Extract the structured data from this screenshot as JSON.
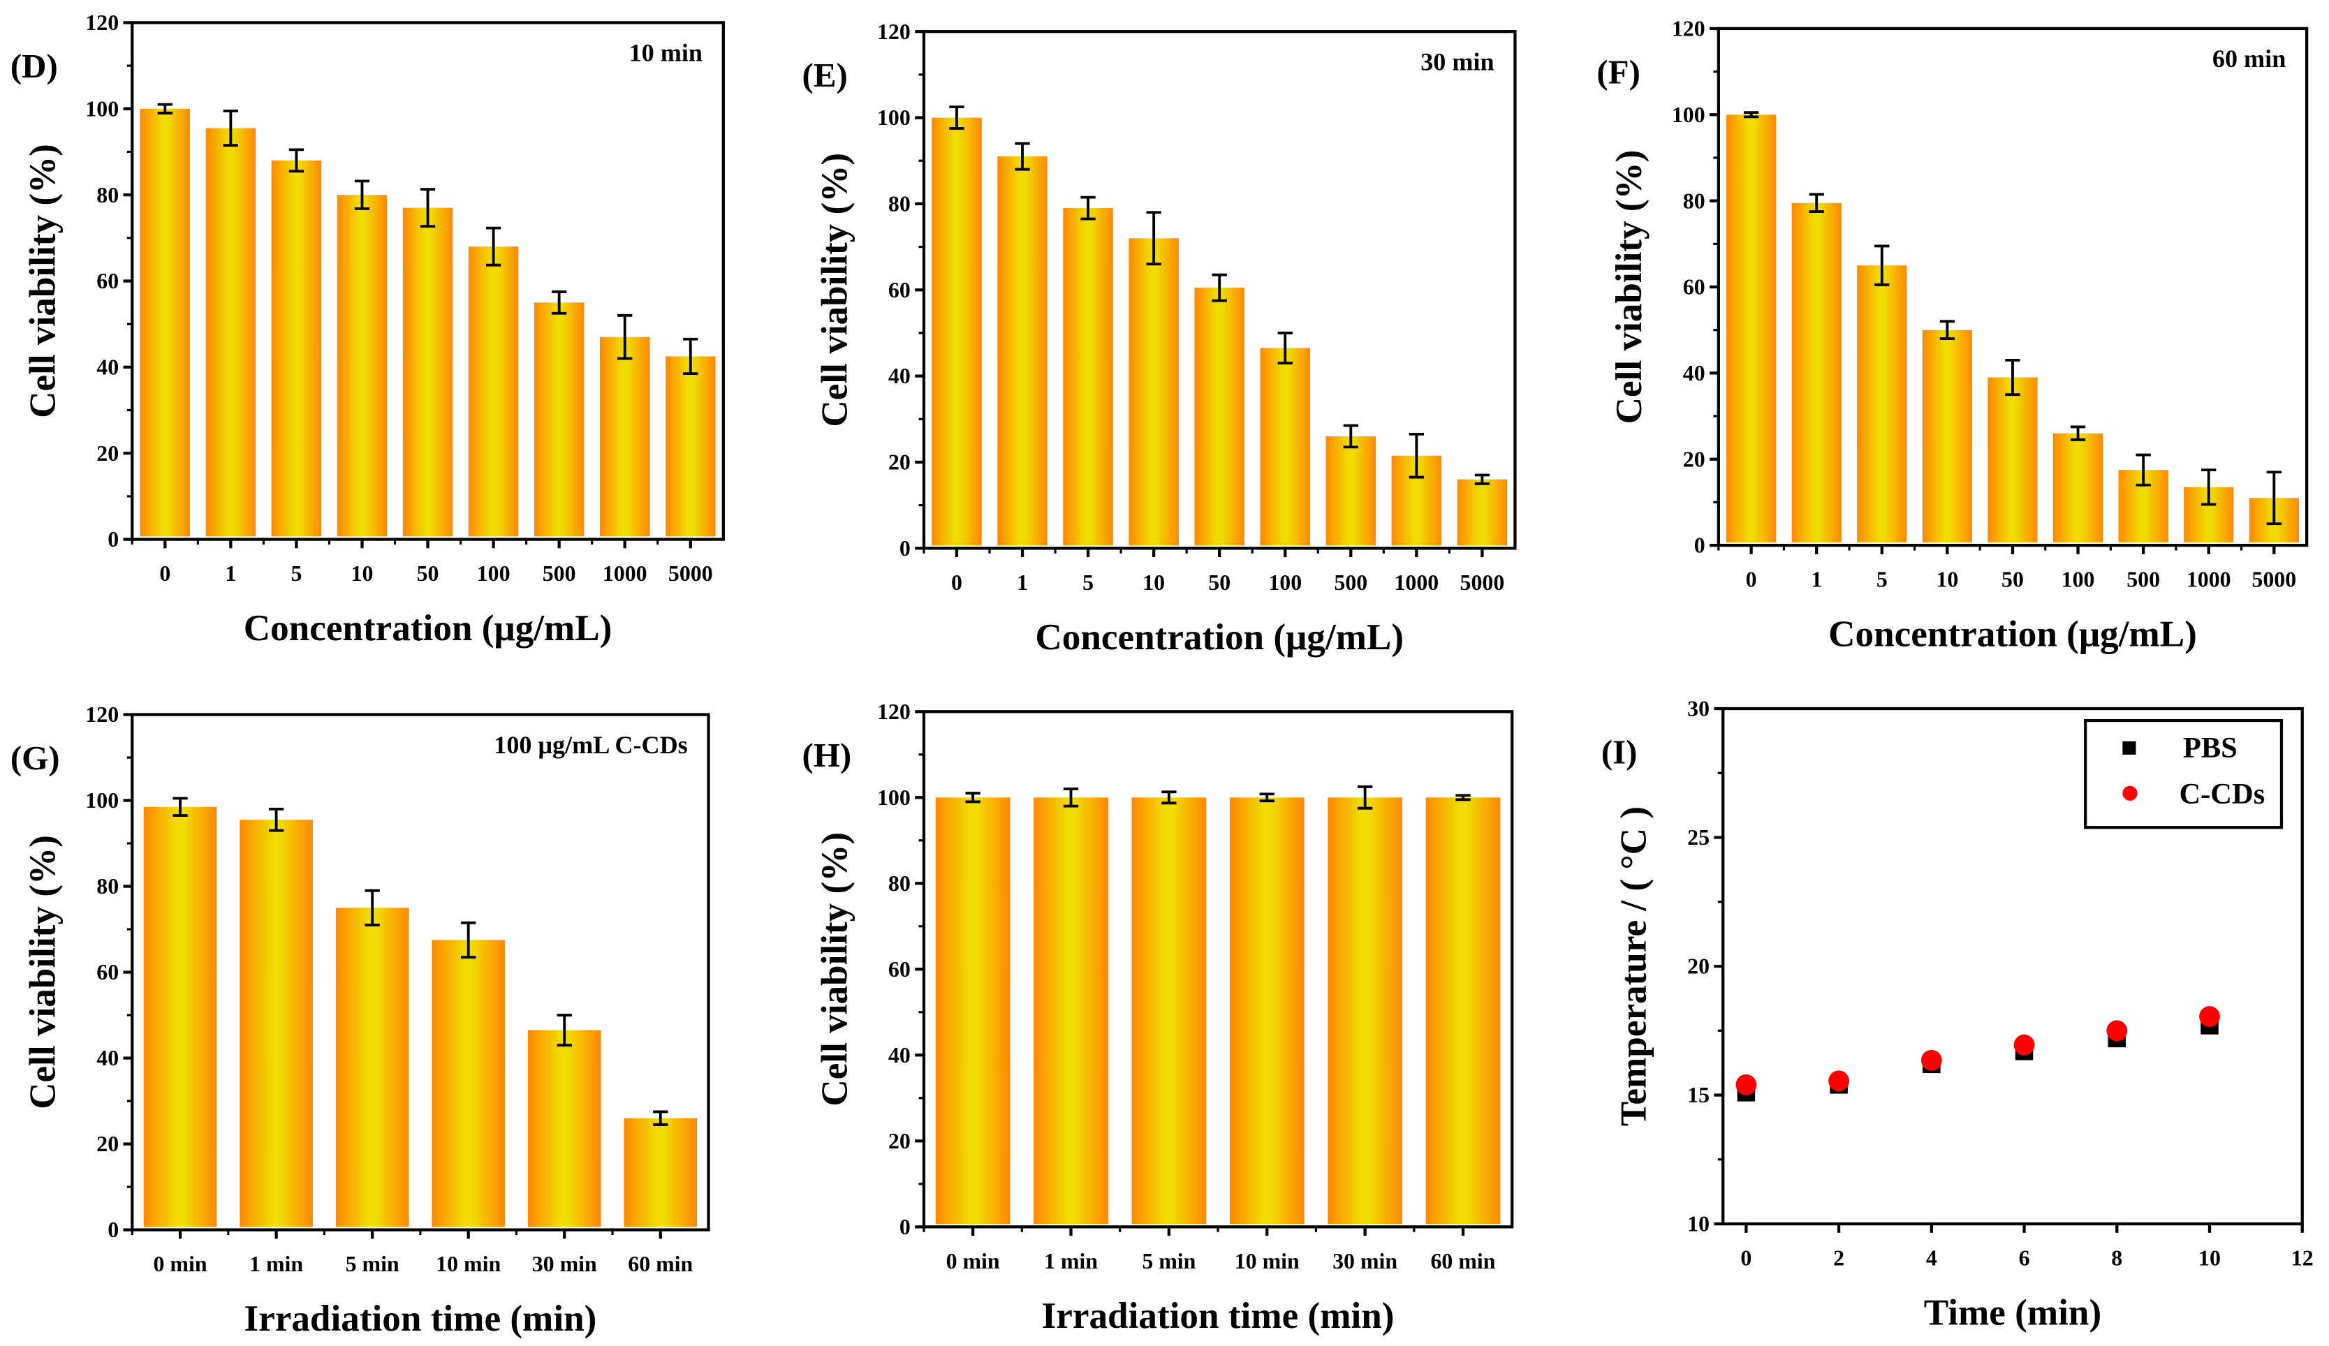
{
  "colors": {
    "bar_edge": "#ff8800",
    "bar_center": "#f0dc00",
    "pbs": "#000000",
    "ccds": "#ff0000"
  },
  "chart_data": [
    {
      "panel": "(D)",
      "type": "bar",
      "annotation": "10 min",
      "xlabel": "Concentration (μg/mL)",
      "ylabel": "Cell viability (%)",
      "ylim": [
        0,
        120
      ],
      "yticks": [
        0,
        20,
        40,
        60,
        80,
        100,
        120
      ],
      "categories": [
        "0",
        "1",
        "5",
        "10",
        "50",
        "100",
        "500",
        "1000",
        "5000"
      ],
      "values": [
        100,
        95.5,
        88,
        80,
        77,
        68,
        55,
        47,
        42.5
      ],
      "errors": [
        1,
        4,
        2.5,
        3.2,
        4.3,
        4.3,
        2.5,
        5,
        4
      ]
    },
    {
      "panel": "(E)",
      "type": "bar",
      "annotation": "30 min",
      "xlabel": "Concentration (μg/mL)",
      "ylabel": "Cell viability (%)",
      "ylim": [
        0,
        120
      ],
      "yticks": [
        0,
        20,
        40,
        60,
        80,
        100,
        120
      ],
      "categories": [
        "0",
        "1",
        "5",
        "10",
        "50",
        "100",
        "500",
        "1000",
        "5000"
      ],
      "values": [
        100,
        91,
        79,
        72,
        60.5,
        46.5,
        26,
        21.5,
        16
      ],
      "errors": [
        2.5,
        3,
        2.5,
        6,
        3,
        3.5,
        2.5,
        5,
        1
      ]
    },
    {
      "panel": "(F)",
      "type": "bar",
      "annotation": "60 min",
      "xlabel": "Concentration (μg/mL)",
      "ylabel": "Cell viability (%)",
      "ylim": [
        0,
        120
      ],
      "yticks": [
        0,
        20,
        40,
        60,
        80,
        100,
        120
      ],
      "categories": [
        "0",
        "1",
        "5",
        "10",
        "50",
        "100",
        "500",
        "1000",
        "5000"
      ],
      "values": [
        100,
        79.5,
        65,
        50,
        39,
        26,
        17.5,
        13.5,
        11
      ],
      "errors": [
        0.5,
        2,
        4.5,
        2,
        4,
        1.5,
        3.5,
        4,
        6
      ]
    },
    {
      "panel": "(G)",
      "type": "bar",
      "annotation": "100 μg/mL C-CDs",
      "xlabel": "Irradiation time (min)",
      "ylabel": "Cell viability (%)",
      "ylim": [
        0,
        120
      ],
      "yticks": [
        0,
        20,
        40,
        60,
        80,
        100,
        120
      ],
      "categories": [
        "0 min",
        "1 min",
        "5 min",
        "10 min",
        "30 min",
        "60 min"
      ],
      "values": [
        98.5,
        95.5,
        75,
        67.5,
        46.5,
        26
      ],
      "errors": [
        2,
        2.5,
        4,
        4,
        3.5,
        1.5
      ]
    },
    {
      "panel": "(H)",
      "type": "bar",
      "annotation": "",
      "xlabel": "Irradiation time (min)",
      "ylabel": "Cell viability (%)",
      "ylim": [
        0,
        120
      ],
      "yticks": [
        0,
        20,
        40,
        60,
        80,
        100,
        120
      ],
      "categories": [
        "0 min",
        "1 min",
        "5 min",
        "10 min",
        "30 min",
        "60 min"
      ],
      "values": [
        100,
        100,
        100,
        100,
        100,
        100
      ],
      "errors": [
        1,
        2,
        1.3,
        0.8,
        2.5,
        0.5
      ]
    },
    {
      "panel": "(I)",
      "type": "scatter",
      "annotation": "",
      "xlabel": "Time (min)",
      "ylabel": "Temperature / ( °C )",
      "xlim": [
        -0.5,
        12
      ],
      "ylim": [
        10,
        30
      ],
      "xticks": [
        0,
        2,
        4,
        6,
        8,
        10,
        12
      ],
      "yticks": [
        10,
        15,
        20,
        25,
        30
      ],
      "legend": "top-right",
      "x": [
        0,
        2,
        4,
        6,
        8,
        10
      ],
      "series": [
        {
          "name": "PBS",
          "marker": "square",
          "values": [
            15.1,
            15.4,
            16.2,
            16.7,
            17.2,
            17.7
          ]
        },
        {
          "name": "C-CDs",
          "marker": "circle",
          "values": [
            15.4,
            15.55,
            16.35,
            16.95,
            17.5,
            18.05
          ]
        }
      ]
    }
  ]
}
